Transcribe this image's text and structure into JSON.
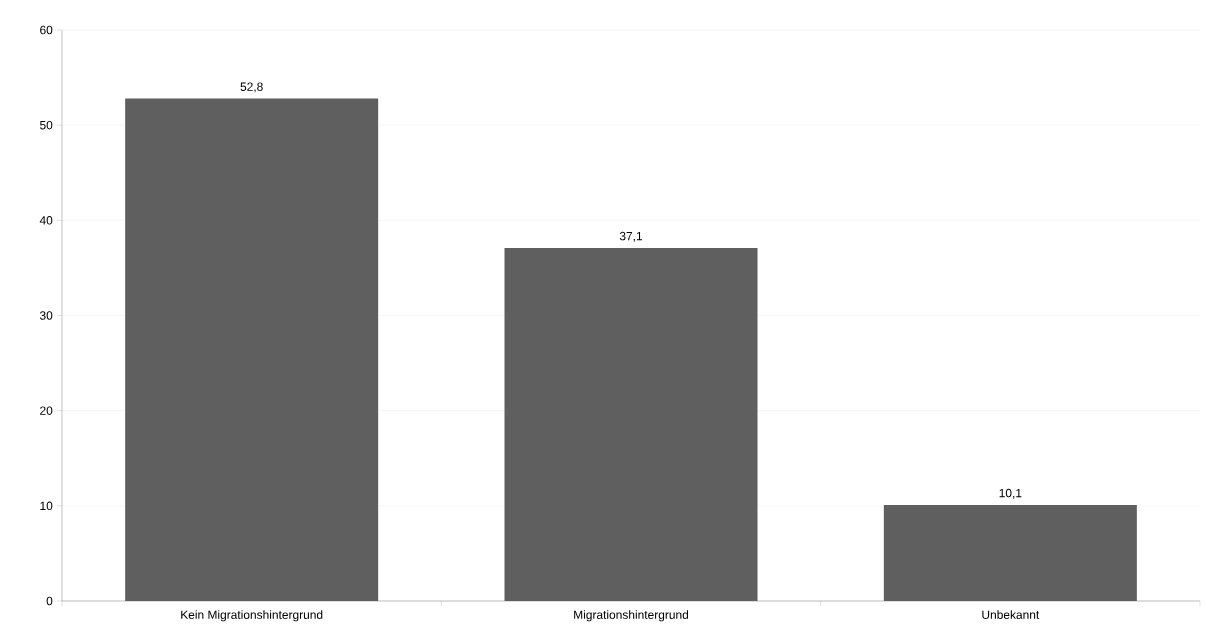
{
  "chart_data": {
    "type": "bar",
    "categories": [
      "Kein Migrationshintergrund",
      "Migrationshintergrund",
      "Unbekannt"
    ],
    "values": [
      52.8,
      37.1,
      10.1
    ],
    "value_labels": [
      "52,8",
      "37,1",
      "10,1"
    ],
    "color": "#5f5f5f",
    "ylim": [
      0,
      60
    ],
    "yticks": [
      0,
      10,
      20,
      30,
      40,
      50,
      60
    ],
    "grid": "y"
  }
}
